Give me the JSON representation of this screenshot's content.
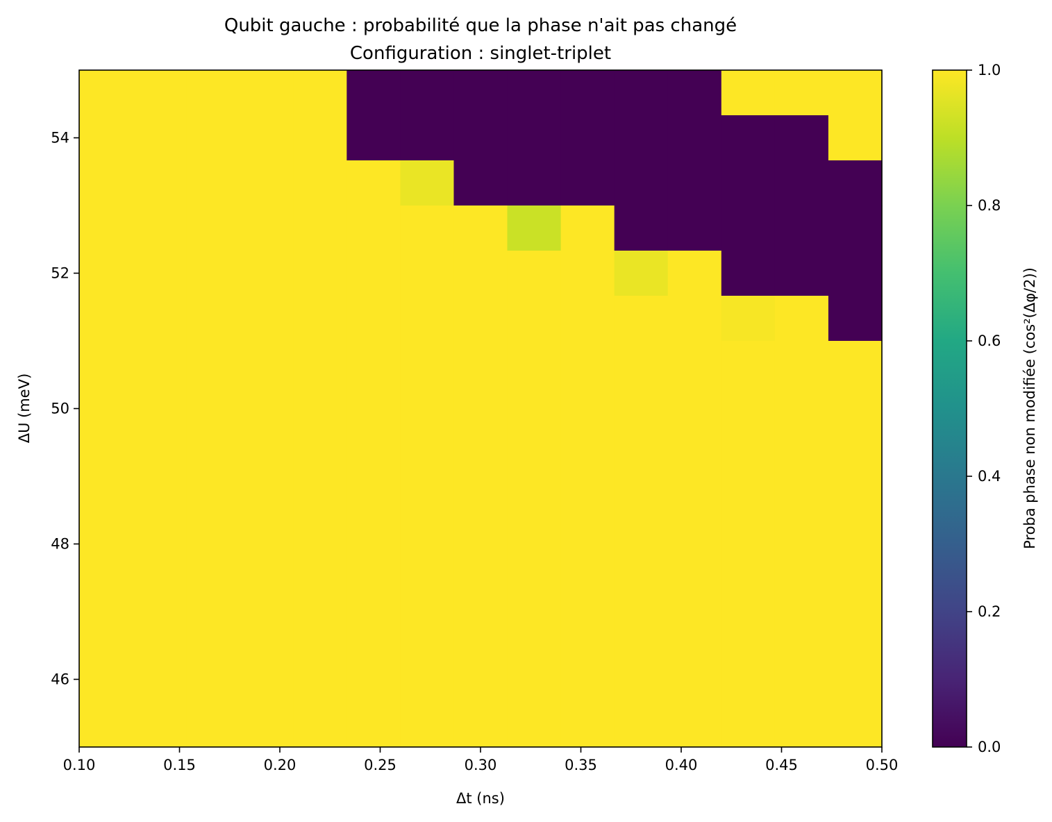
{
  "chart_data": {
    "type": "heatmap",
    "title": "Qubit gauche : probabilité que la phase n'ait pas changé",
    "subtitle": "Configuration : singlet-triplet",
    "xlabel": "Δt (ns)",
    "ylabel": "ΔU (meV)",
    "colorbar_label": "Proba phase non modifiée  (cos²(Δφ/2))",
    "colormap": "viridis",
    "xlim": [
      0.1,
      0.5
    ],
    "ylim": [
      45,
      55
    ],
    "clim": [
      0,
      1
    ],
    "x_ticks": [
      "0.10",
      "0.15",
      "0.20",
      "0.25",
      "0.30",
      "0.35",
      "0.40",
      "0.45",
      "0.50"
    ],
    "y_ticks": [
      "46",
      "48",
      "50",
      "52",
      "54"
    ],
    "colorbar_ticks": [
      "0.0",
      "0.2",
      "0.4",
      "0.6",
      "0.8",
      "1.0"
    ],
    "grid": false,
    "legend": "none",
    "x_cells": 15,
    "y_cells": 15,
    "x_edges_start": 0.1,
    "x_edges_end": 0.5,
    "y_edges_start": 45,
    "y_edges_end": 55,
    "rows_top_to_bottom": [
      [
        1,
        1,
        1,
        1,
        1,
        0,
        0,
        0,
        0,
        0,
        0,
        0,
        1,
        1,
        1
      ],
      [
        1,
        1,
        1,
        1,
        1,
        0,
        0,
        0,
        0,
        0,
        0,
        0,
        0,
        0,
        1
      ],
      [
        1,
        1,
        1,
        1,
        1,
        1,
        0.97,
        0,
        0,
        0,
        0,
        0,
        0,
        0,
        0
      ],
      [
        1,
        1,
        1,
        1,
        1,
        1,
        1,
        1,
        0.92,
        1,
        0,
        0,
        0,
        0,
        0
      ],
      [
        1,
        1,
        1,
        1,
        1,
        1,
        1,
        1,
        1,
        1,
        0.97,
        1,
        0,
        0,
        0
      ],
      [
        1,
        1,
        1,
        1,
        1,
        1,
        1,
        1,
        1,
        1,
        1,
        1,
        0.99,
        1,
        0
      ],
      [
        1,
        1,
        1,
        1,
        1,
        1,
        1,
        1,
        1,
        1,
        1,
        1,
        1,
        1,
        1
      ],
      [
        1,
        1,
        1,
        1,
        1,
        1,
        1,
        1,
        1,
        1,
        1,
        1,
        1,
        1,
        1
      ],
      [
        1,
        1,
        1,
        1,
        1,
        1,
        1,
        1,
        1,
        1,
        1,
        1,
        1,
        1,
        1
      ],
      [
        1,
        1,
        1,
        1,
        1,
        1,
        1,
        1,
        1,
        1,
        1,
        1,
        1,
        1,
        1
      ],
      [
        1,
        1,
        1,
        1,
        1,
        1,
        1,
        1,
        1,
        1,
        1,
        1,
        1,
        1,
        1
      ],
      [
        1,
        1,
        1,
        1,
        1,
        1,
        1,
        1,
        1,
        1,
        1,
        1,
        1,
        1,
        1
      ],
      [
        1,
        1,
        1,
        1,
        1,
        1,
        1,
        1,
        1,
        1,
        1,
        1,
        1,
        1,
        1
      ],
      [
        1,
        1,
        1,
        1,
        1,
        1,
        1,
        1,
        1,
        1,
        1,
        1,
        1,
        1,
        1
      ],
      [
        1,
        1,
        1,
        1,
        1,
        1,
        1,
        1,
        1,
        1,
        1,
        1,
        1,
        1,
        1
      ]
    ]
  }
}
